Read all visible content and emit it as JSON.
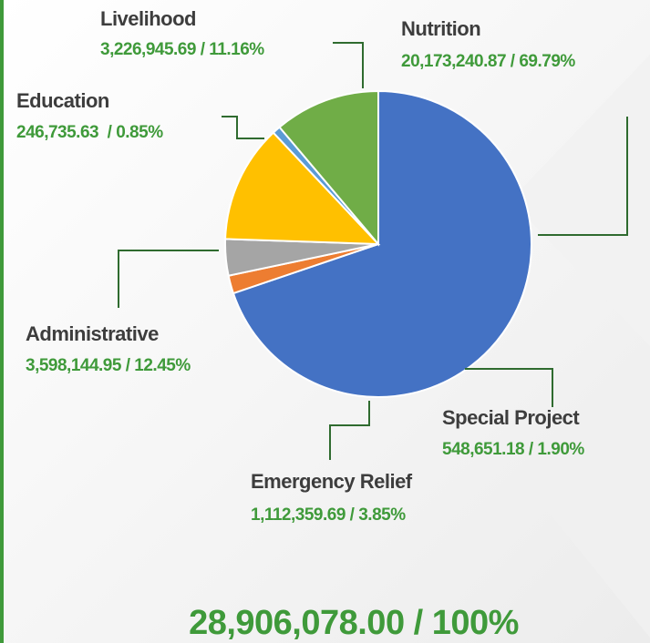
{
  "chart_data": {
    "type": "pie",
    "categories": [
      "Nutrition",
      "Special Project",
      "Emergency Relief",
      "Administrative",
      "Education",
      "Livelihood"
    ],
    "values": [
      20173240.87,
      548651.18,
      1112359.69,
      3598144.95,
      246735.63,
      3226945.69
    ],
    "value_labels": [
      "20,173,240.87 / 69.79%",
      "548,651.18 / 1.90%",
      "1,112,359.69 / 3.85%",
      "3,598,144.95 / 12.45%",
      "246,735.63  / 0.85%",
      "3,226,945.69 / 11.16%"
    ],
    "colors": [
      "#4472c4",
      "#ed7d31",
      "#a5a5a5",
      "#ffc000",
      "#5b9bd5",
      "#70ad47"
    ],
    "total_label": "28,906,078.00  / 100%"
  }
}
